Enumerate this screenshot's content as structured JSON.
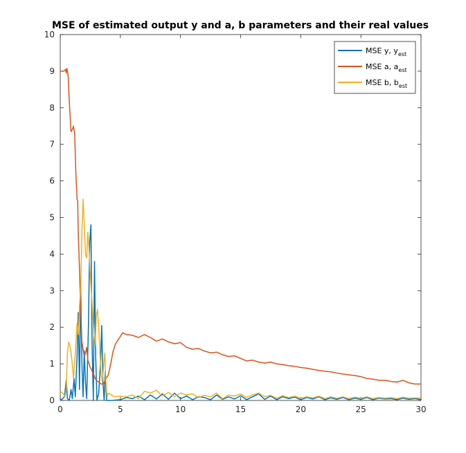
{
  "chart_data": {
    "type": "line",
    "title": "MSE of estimated output y and a, b parameters and their real values",
    "xlabel": "",
    "ylabel": "",
    "xlim": [
      0,
      30
    ],
    "ylim": [
      0,
      10
    ],
    "xticks": [
      0,
      5,
      10,
      15,
      20,
      25,
      30
    ],
    "yticks": [
      0,
      1,
      2,
      3,
      4,
      5,
      6,
      7,
      8,
      9,
      10
    ],
    "grid": false,
    "legend_position": "top-right",
    "series": [
      {
        "name": "MSE y, y",
        "name_sub": "est",
        "color": "#0072BD",
        "points": [
          [
            0.0,
            0.0
          ],
          [
            0.2,
            0.05
          ],
          [
            0.35,
            0.1
          ],
          [
            0.5,
            0.55
          ],
          [
            0.6,
            0.05
          ],
          [
            0.75,
            0.0
          ],
          [
            0.9,
            0.3
          ],
          [
            1.0,
            0.05
          ],
          [
            1.15,
            0.6
          ],
          [
            1.25,
            0.1
          ],
          [
            1.4,
            1.2
          ],
          [
            1.5,
            2.4
          ],
          [
            1.6,
            0.3
          ],
          [
            1.7,
            3.1
          ],
          [
            1.8,
            1.0
          ],
          [
            1.9,
            0.1
          ],
          [
            2.0,
            1.35
          ],
          [
            2.1,
            0.5
          ],
          [
            2.2,
            0.05
          ],
          [
            2.35,
            2.1
          ],
          [
            2.45,
            4.3
          ],
          [
            2.55,
            4.8
          ],
          [
            2.65,
            1.5
          ],
          [
            2.75,
            0.0
          ],
          [
            2.85,
            3.8
          ],
          [
            2.95,
            1.2
          ],
          [
            3.05,
            0.0
          ],
          [
            3.2,
            0.2
          ],
          [
            3.35,
            1.05
          ],
          [
            3.45,
            2.05
          ],
          [
            3.55,
            0.5
          ],
          [
            3.65,
            0.0
          ],
          [
            3.75,
            0.8
          ],
          [
            3.85,
            0.0
          ],
          [
            4.0,
            0.0
          ],
          [
            4.3,
            0.0
          ],
          [
            5.0,
            0.02
          ],
          [
            5.5,
            0.08
          ],
          [
            6.0,
            0.05
          ],
          [
            6.5,
            0.12
          ],
          [
            7.0,
            0.02
          ],
          [
            7.5,
            0.15
          ],
          [
            8.0,
            0.04
          ],
          [
            8.5,
            0.18
          ],
          [
            9.0,
            0.03
          ],
          [
            9.5,
            0.2
          ],
          [
            10.0,
            0.05
          ],
          [
            10.5,
            0.12
          ],
          [
            11.0,
            0.02
          ],
          [
            11.5,
            0.1
          ],
          [
            12.0,
            0.08
          ],
          [
            12.5,
            0.02
          ],
          [
            13.0,
            0.15
          ],
          [
            13.5,
            0.03
          ],
          [
            14.0,
            0.1
          ],
          [
            14.5,
            0.04
          ],
          [
            15.0,
            0.13
          ],
          [
            15.5,
            0.02
          ],
          [
            16.0,
            0.1
          ],
          [
            16.5,
            0.18
          ],
          [
            17.0,
            0.03
          ],
          [
            17.5,
            0.12
          ],
          [
            18.0,
            0.02
          ],
          [
            18.5,
            0.1
          ],
          [
            19.0,
            0.05
          ],
          [
            19.5,
            0.09
          ],
          [
            20.0,
            0.02
          ],
          [
            20.5,
            0.08
          ],
          [
            21.0,
            0.04
          ],
          [
            21.5,
            0.1
          ],
          [
            22.0,
            0.02
          ],
          [
            22.5,
            0.07
          ],
          [
            23.0,
            0.03
          ],
          [
            23.5,
            0.08
          ],
          [
            24.0,
            0.02
          ],
          [
            24.5,
            0.06
          ],
          [
            25.0,
            0.03
          ],
          [
            25.5,
            0.08
          ],
          [
            26.0,
            0.02
          ],
          [
            26.5,
            0.06
          ],
          [
            27.0,
            0.04
          ],
          [
            27.5,
            0.05
          ],
          [
            28.0,
            0.02
          ],
          [
            28.5,
            0.06
          ],
          [
            29.0,
            0.03
          ],
          [
            29.5,
            0.05
          ],
          [
            30.0,
            0.02
          ]
        ]
      },
      {
        "name": "MSE a, a",
        "name_sub": "est",
        "color": "#D95319",
        "points": [
          [
            0.0,
            9.0
          ],
          [
            0.3,
            9.0
          ],
          [
            0.45,
            9.05
          ],
          [
            0.5,
            8.95
          ],
          [
            0.55,
            9.08
          ],
          [
            0.65,
            8.9
          ],
          [
            0.75,
            8.2
          ],
          [
            0.85,
            7.6
          ],
          [
            0.9,
            7.35
          ],
          [
            1.0,
            7.4
          ],
          [
            1.1,
            7.5
          ],
          [
            1.2,
            7.3
          ],
          [
            1.3,
            6.2
          ],
          [
            1.4,
            5.5
          ],
          [
            1.45,
            5.45
          ],
          [
            1.5,
            4.6
          ],
          [
            1.6,
            3.6
          ],
          [
            1.7,
            2.5
          ],
          [
            1.8,
            1.6
          ],
          [
            1.9,
            1.4
          ],
          [
            2.0,
            1.2
          ],
          [
            2.1,
            1.3
          ],
          [
            2.2,
            1.45
          ],
          [
            2.3,
            1.1
          ],
          [
            2.4,
            1.0
          ],
          [
            2.5,
            0.9
          ],
          [
            2.6,
            0.85
          ],
          [
            2.7,
            0.75
          ],
          [
            2.8,
            0.7
          ],
          [
            2.9,
            0.6
          ],
          [
            3.0,
            0.55
          ],
          [
            3.2,
            0.5
          ],
          [
            3.4,
            0.45
          ],
          [
            3.6,
            0.45
          ],
          [
            3.8,
            0.6
          ],
          [
            4.0,
            0.7
          ],
          [
            4.2,
            1.0
          ],
          [
            4.4,
            1.35
          ],
          [
            4.6,
            1.55
          ],
          [
            4.8,
            1.65
          ],
          [
            5.0,
            1.75
          ],
          [
            5.2,
            1.85
          ],
          [
            5.5,
            1.8
          ],
          [
            6.0,
            1.78
          ],
          [
            6.5,
            1.72
          ],
          [
            7.0,
            1.8
          ],
          [
            7.5,
            1.72
          ],
          [
            8.0,
            1.62
          ],
          [
            8.5,
            1.68
          ],
          [
            9.0,
            1.6
          ],
          [
            9.5,
            1.55
          ],
          [
            10.0,
            1.58
          ],
          [
            10.5,
            1.45
          ],
          [
            11.0,
            1.4
          ],
          [
            11.5,
            1.42
          ],
          [
            12.0,
            1.35
          ],
          [
            12.5,
            1.3
          ],
          [
            13.0,
            1.32
          ],
          [
            13.5,
            1.25
          ],
          [
            14.0,
            1.2
          ],
          [
            14.5,
            1.22
          ],
          [
            15.0,
            1.15
          ],
          [
            15.5,
            1.08
          ],
          [
            16.0,
            1.1
          ],
          [
            16.5,
            1.05
          ],
          [
            17.0,
            1.02
          ],
          [
            17.5,
            1.05
          ],
          [
            18.0,
            1.0
          ],
          [
            18.5,
            0.98
          ],
          [
            19.0,
            0.95
          ],
          [
            19.5,
            0.93
          ],
          [
            20.0,
            0.9
          ],
          [
            20.5,
            0.88
          ],
          [
            21.0,
            0.85
          ],
          [
            21.5,
            0.82
          ],
          [
            22.0,
            0.8
          ],
          [
            22.5,
            0.78
          ],
          [
            23.0,
            0.75
          ],
          [
            23.5,
            0.72
          ],
          [
            24.0,
            0.7
          ],
          [
            24.5,
            0.68
          ],
          [
            25.0,
            0.65
          ],
          [
            25.5,
            0.6
          ],
          [
            26.0,
            0.58
          ],
          [
            26.5,
            0.55
          ],
          [
            27.0,
            0.55
          ],
          [
            27.5,
            0.52
          ],
          [
            28.0,
            0.5
          ],
          [
            28.5,
            0.55
          ],
          [
            29.0,
            0.48
          ],
          [
            29.5,
            0.45
          ],
          [
            30.0,
            0.45
          ]
        ]
      },
      {
        "name": "MSE b, b",
        "name_sub": "est",
        "color": "#EDB120",
        "points": [
          [
            0.0,
            0.25
          ],
          [
            0.2,
            0.2
          ],
          [
            0.4,
            0.1
          ],
          [
            0.5,
            0.3
          ],
          [
            0.6,
            1.3
          ],
          [
            0.7,
            1.6
          ],
          [
            0.8,
            1.5
          ],
          [
            0.9,
            1.3
          ],
          [
            1.0,
            1.0
          ],
          [
            1.1,
            0.6
          ],
          [
            1.2,
            1.0
          ],
          [
            1.3,
            1.6
          ],
          [
            1.4,
            2.1
          ],
          [
            1.5,
            1.8
          ],
          [
            1.6,
            2.6
          ],
          [
            1.7,
            3.0
          ],
          [
            1.8,
            4.6
          ],
          [
            1.9,
            5.5
          ],
          [
            2.0,
            4.8
          ],
          [
            2.1,
            4.0
          ],
          [
            2.2,
            3.9
          ],
          [
            2.3,
            4.6
          ],
          [
            2.4,
            4.1
          ],
          [
            2.5,
            3.4
          ],
          [
            2.6,
            2.9
          ],
          [
            2.7,
            2.4
          ],
          [
            2.8,
            1.8
          ],
          [
            2.9,
            1.5
          ],
          [
            3.0,
            2.3
          ],
          [
            3.1,
            2.5
          ],
          [
            3.2,
            2.0
          ],
          [
            3.3,
            1.3
          ],
          [
            3.4,
            0.7
          ],
          [
            3.5,
            0.5
          ],
          [
            3.6,
            0.9
          ],
          [
            3.7,
            1.3
          ],
          [
            3.8,
            0.5
          ],
          [
            3.9,
            0.1
          ],
          [
            4.0,
            0.2
          ],
          [
            4.5,
            0.1
          ],
          [
            5.0,
            0.12
          ],
          [
            5.5,
            0.1
          ],
          [
            6.0,
            0.15
          ],
          [
            6.5,
            0.05
          ],
          [
            7.0,
            0.25
          ],
          [
            7.5,
            0.2
          ],
          [
            8.0,
            0.28
          ],
          [
            8.5,
            0.12
          ],
          [
            9.0,
            0.22
          ],
          [
            9.5,
            0.1
          ],
          [
            10.0,
            0.2
          ],
          [
            10.5,
            0.15
          ],
          [
            11.0,
            0.18
          ],
          [
            11.5,
            0.08
          ],
          [
            12.0,
            0.14
          ],
          [
            12.5,
            0.1
          ],
          [
            13.0,
            0.2
          ],
          [
            13.5,
            0.05
          ],
          [
            14.0,
            0.15
          ],
          [
            14.5,
            0.12
          ],
          [
            15.0,
            0.18
          ],
          [
            15.5,
            0.08
          ],
          [
            16.0,
            0.15
          ],
          [
            16.5,
            0.2
          ],
          [
            17.0,
            0.1
          ],
          [
            17.5,
            0.14
          ],
          [
            18.0,
            0.06
          ],
          [
            18.5,
            0.13
          ],
          [
            19.0,
            0.08
          ],
          [
            19.5,
            0.12
          ],
          [
            20.0,
            0.06
          ],
          [
            20.5,
            0.1
          ],
          [
            21.0,
            0.07
          ],
          [
            21.5,
            0.12
          ],
          [
            22.0,
            0.05
          ],
          [
            22.5,
            0.1
          ],
          [
            23.0,
            0.06
          ],
          [
            23.5,
            0.1
          ],
          [
            24.0,
            0.05
          ],
          [
            24.5,
            0.09
          ],
          [
            25.0,
            0.06
          ],
          [
            25.5,
            0.1
          ],
          [
            26.0,
            0.05
          ],
          [
            26.5,
            0.08
          ],
          [
            27.0,
            0.06
          ],
          [
            27.5,
            0.08
          ],
          [
            28.0,
            0.05
          ],
          [
            28.5,
            0.09
          ],
          [
            29.0,
            0.06
          ],
          [
            29.5,
            0.07
          ],
          [
            30.0,
            0.06
          ]
        ]
      }
    ]
  }
}
